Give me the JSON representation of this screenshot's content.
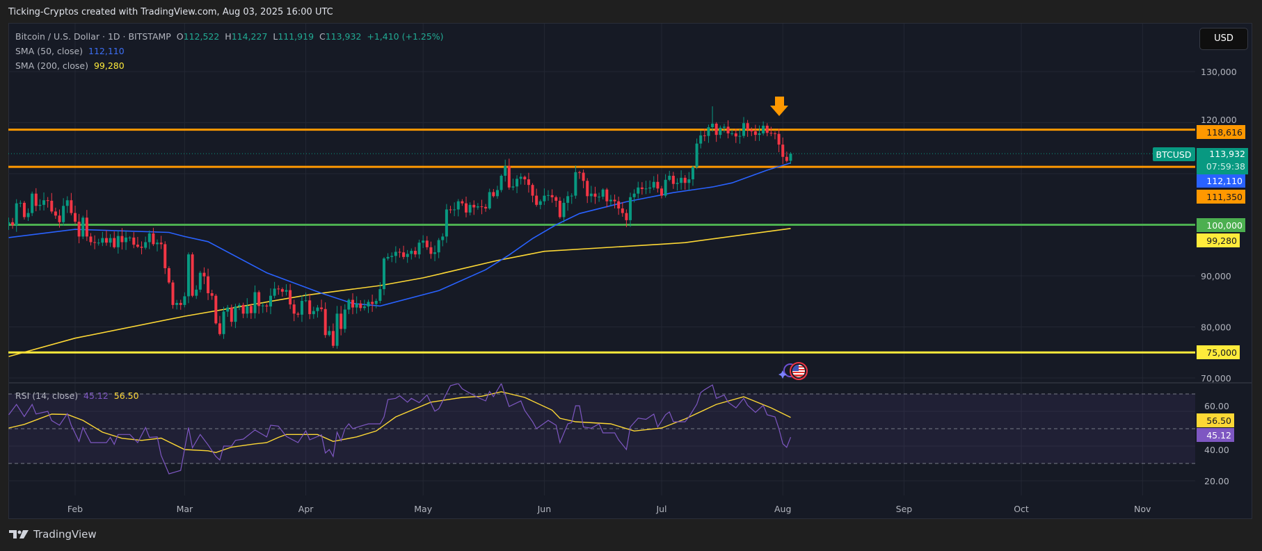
{
  "header": {
    "title": "Ticking-Cryptos created with TradingView.com, Aug 03, 2025 16:00 UTC"
  },
  "legend": {
    "symbol": "Bitcoin / U.S. Dollar · 1D · BITSTAMP",
    "open_label": "O",
    "open": "112,522",
    "high_label": "H",
    "high": "114,227",
    "low_label": "L",
    "low": "111,919",
    "close_label": "C",
    "close": "113,932",
    "change": "+1,410 (+1.25%)",
    "sma50_label": "SMA (50, close)",
    "sma50_value": "112,110",
    "sma200_label": "SMA (200, close)",
    "sma200_value": "99,280"
  },
  "currency_button": "USD",
  "footer": {
    "brand": "TradingView"
  },
  "colors": {
    "up": "#089981",
    "down": "#f23645",
    "sma50": "#2962ff",
    "sma200": "#fdd835",
    "resistance": "#ff9800",
    "support_green": "#4caf50",
    "support_yellow": "#ffeb3b",
    "rsi": "#7e57c2",
    "rsi_ma": "#fdd835",
    "background": "#161a25"
  },
  "icons": {
    "arrow": "arrow-down-icon",
    "event": "us-flag-economic-event-icon",
    "sparkle": "sparkle-icon"
  },
  "chart_data": {
    "type": "candlestick",
    "symbol": "BTCUSD",
    "interval": "1D",
    "ylim": [
      67000,
      134000
    ],
    "grid": true,
    "x_tick_labels": [
      "Feb",
      "Mar",
      "Apr",
      "May",
      "Jun",
      "Jul",
      "Aug",
      "Sep",
      "Oct",
      "Nov"
    ],
    "y_ticks": [
      {
        "value": 130000,
        "label": "130,000"
      },
      {
        "value": 120000,
        "label": "120,000"
      },
      {
        "value": 90000,
        "label": "90,000"
      },
      {
        "value": 80000,
        "label": "80,000"
      },
      {
        "value": 70000,
        "label": "70,000"
      }
    ],
    "price": {
      "first_date": "2025-01-15",
      "closes": [
        100500,
        99900,
        104200,
        104300,
        101500,
        102300,
        106100,
        103700,
        103900,
        104800,
        104700,
        102600,
        101800,
        100500,
        103700,
        104800,
        102300,
        100600,
        97700,
        101400,
        97700,
        96600,
        96500,
        96500,
        97400,
        96500,
        97400,
        95600,
        97800,
        96600,
        97500,
        97500,
        96100,
        95700,
        95500,
        96600,
        98300,
        96200,
        96500,
        96200,
        91500,
        88700,
        84300,
        84700,
        84300,
        86000,
        94200,
        86100,
        87300,
        90600,
        89900,
        86600,
        86100,
        80700,
        78600,
        83000,
        83800,
        81000,
        84000,
        84300,
        82600,
        84100,
        82700,
        86800,
        84100,
        84200,
        84000,
        86100,
        87500,
        87400,
        86900,
        87200,
        84400,
        82600,
        82400,
        85100,
        85200,
        82500,
        83100,
        83800,
        83500,
        78400,
        79200,
        76300,
        82600,
        79600,
        83400,
        85300,
        83800,
        84600,
        83700,
        84000,
        84900,
        84500,
        85100,
        87400,
        93400,
        93700,
        93900,
        94700,
        94600,
        93700,
        94300,
        94900,
        94200,
        96500,
        96900,
        95600,
        94300,
        94600,
        97000,
        97700,
        103000,
        102900,
        103000,
        104600,
        104200,
        102400,
        103900,
        103400,
        103600,
        103500,
        103200,
        106400,
        105600,
        106800,
        109600,
        111500,
        107300,
        107500,
        109000,
        109400,
        108900,
        107800,
        105700,
        103900,
        104600,
        105700,
        105800,
        105400,
        104700,
        101500,
        104300,
        105600,
        105700,
        110300,
        110200,
        108600,
        105600,
        106100,
        105500,
        105500,
        106900,
        104600,
        104900,
        104600,
        103200,
        102300,
        100900,
        105400,
        106100,
        107300,
        107000,
        107100,
        107300,
        108400,
        107100,
        105700,
        108800,
        109600,
        108000,
        108200,
        109200,
        108200,
        108900,
        111300,
        115900,
        117500,
        117400,
        119100,
        119800,
        117600,
        119000,
        119200,
        117900,
        117900,
        117300,
        117400,
        119900,
        118600,
        118300,
        117600,
        117900,
        119400,
        118000,
        117900,
        117800,
        115700,
        113300,
        112500,
        113932
      ],
      "last_candle": {
        "open": 112522,
        "high": 114227,
        "low": 111919,
        "close": 113932
      },
      "notable_high": {
        "date": "2025-07-14",
        "value": 123200
      }
    },
    "sma50": [
      [
        "2025-01-15",
        97500
      ],
      [
        "2025-02-01",
        99100
      ],
      [
        "2025-02-25",
        98500
      ],
      [
        "2025-03-01",
        97700
      ],
      [
        "2025-03-07",
        96700
      ],
      [
        "2025-03-22",
        90600
      ],
      [
        "2025-04-05",
        86600
      ],
      [
        "2025-04-13",
        84600
      ],
      [
        "2025-04-20",
        84100
      ],
      [
        "2025-05-05",
        87100
      ],
      [
        "2025-05-17",
        91200
      ],
      [
        "2025-05-23",
        94100
      ],
      [
        "2025-05-29",
        97300
      ],
      [
        "2025-06-04",
        100000
      ],
      [
        "2025-06-10",
        102200
      ],
      [
        "2025-06-22",
        104500
      ],
      [
        "2025-07-04",
        106300
      ],
      [
        "2025-07-14",
        107400
      ],
      [
        "2025-07-19",
        108200
      ],
      [
        "2025-07-28",
        110700
      ],
      [
        "2025-08-03",
        112110
      ]
    ],
    "sma200": [
      [
        "2025-01-15",
        74200
      ],
      [
        "2025-02-01",
        77800
      ],
      [
        "2025-03-01",
        82100
      ],
      [
        "2025-04-01",
        86200
      ],
      [
        "2025-04-20",
        88100
      ],
      [
        "2025-05-01",
        89600
      ],
      [
        "2025-05-20",
        93000
      ],
      [
        "2025-06-01",
        94800
      ],
      [
        "2025-07-01",
        96200
      ],
      [
        "2025-07-07",
        96500
      ],
      [
        "2025-08-03",
        99280
      ]
    ],
    "horizontal_lines": [
      {
        "name": "resistance-118616",
        "value": 118616,
        "color": "#ff9800"
      },
      {
        "name": "support-111350",
        "value": 111350,
        "color": "#ff9800"
      },
      {
        "name": "support-100000",
        "value": 100000,
        "color": "#4caf50"
      },
      {
        "name": "support-75000",
        "value": 75000,
        "color": "#ffeb3b"
      }
    ],
    "price_labels": [
      {
        "name": "label-118616",
        "text": "118,616",
        "bg": "#ff9800",
        "fg": "#131722"
      },
      {
        "name": "label-sma50",
        "text": "112,110",
        "bg": "#2962ff",
        "fg": "#ffffff"
      },
      {
        "name": "label-111350",
        "text": "111,350",
        "bg": "#ff9800",
        "fg": "#131722"
      },
      {
        "name": "label-100000",
        "text": "100,000",
        "bg": "#4caf50",
        "fg": "#ffffff"
      },
      {
        "name": "label-sma200",
        "text": "99,280",
        "bg": "#ffeb3b",
        "fg": "#131722"
      },
      {
        "name": "label-75000",
        "text": "75,000",
        "bg": "#ffeb3b",
        "fg": "#131722"
      }
    ],
    "last_price": {
      "ticker": "BTCUSD",
      "price": "113,932",
      "value": 113932,
      "countdown": "07:59:38",
      "color": "#089981"
    },
    "rsi": {
      "label": "RSI (14, close)",
      "value": "45.12",
      "ma_value": "56.50",
      "ylim": [
        10,
        80
      ],
      "bands": [
        30,
        50,
        70
      ],
      "y_ticks": [
        {
          "value": 60,
          "label": "60.00"
        },
        {
          "value": 40,
          "label": "40.00"
        },
        {
          "value": 20,
          "label": "20.00"
        }
      ],
      "series": [
        [
          "2025-01-15",
          58
        ],
        [
          "2025-01-17",
          64
        ],
        [
          "2025-01-19",
          57
        ],
        [
          "2025-01-21",
          64
        ],
        [
          "2025-01-22",
          58.5
        ],
        [
          "2025-01-25",
          60
        ],
        [
          "2025-01-26",
          54.7
        ],
        [
          "2025-01-28",
          52
        ],
        [
          "2025-01-30",
          58.7
        ],
        [
          "2025-01-31",
          52
        ],
        [
          "2025-02-02",
          42.7
        ],
        [
          "2025-02-03",
          50.7
        ],
        [
          "2025-02-05",
          42
        ],
        [
          "2025-02-09",
          42
        ],
        [
          "2025-02-10",
          45
        ],
        [
          "2025-02-11",
          41
        ],
        [
          "2025-02-12",
          46.7
        ],
        [
          "2025-02-15",
          46.7
        ],
        [
          "2025-02-17",
          42
        ],
        [
          "2025-02-19",
          50.7
        ],
        [
          "2025-02-20",
          45
        ],
        [
          "2025-02-22",
          45.3
        ],
        [
          "2025-02-23",
          34.7
        ],
        [
          "2025-02-25",
          24
        ],
        [
          "2025-02-28",
          26
        ],
        [
          "2025-03-02",
          50.7
        ],
        [
          "2025-03-03",
          39
        ],
        [
          "2025-03-05",
          46.7
        ],
        [
          "2025-03-07",
          40.7
        ],
        [
          "2025-03-09",
          34
        ],
        [
          "2025-03-10",
          32
        ],
        [
          "2025-03-11",
          40
        ],
        [
          "2025-03-13",
          40
        ],
        [
          "2025-03-14",
          43.3
        ],
        [
          "2025-03-16",
          44
        ],
        [
          "2025-03-19",
          49.3
        ],
        [
          "2025-03-22",
          45.3
        ],
        [
          "2025-03-23",
          52
        ],
        [
          "2025-03-25",
          51.5
        ],
        [
          "2025-03-27",
          45.6
        ],
        [
          "2025-03-30",
          42
        ],
        [
          "2025-04-01",
          48.8
        ],
        [
          "2025-04-02",
          43.6
        ],
        [
          "2025-04-05",
          46.5
        ],
        [
          "2025-04-06",
          36
        ],
        [
          "2025-04-07",
          38
        ],
        [
          "2025-04-08",
          34
        ],
        [
          "2025-04-09",
          48
        ],
        [
          "2025-04-10",
          43
        ],
        [
          "2025-04-11",
          50
        ],
        [
          "2025-04-12",
          52.8
        ],
        [
          "2025-04-13",
          50
        ],
        [
          "2025-04-15",
          51.5
        ],
        [
          "2025-04-17",
          52.8
        ],
        [
          "2025-04-20",
          52.8
        ],
        [
          "2025-04-21",
          56.8
        ],
        [
          "2025-04-22",
          66.8
        ],
        [
          "2025-04-24",
          67.5
        ],
        [
          "2025-04-25",
          69
        ],
        [
          "2025-04-27",
          65.3
        ],
        [
          "2025-04-28",
          67.5
        ],
        [
          "2025-04-30",
          65
        ],
        [
          "2025-05-02",
          69.4
        ],
        [
          "2025-05-04",
          60.1
        ],
        [
          "2025-05-05",
          61.5
        ],
        [
          "2025-05-08",
          74.8
        ],
        [
          "2025-05-10",
          76
        ],
        [
          "2025-05-11",
          73
        ],
        [
          "2025-05-13",
          70.4
        ],
        [
          "2025-05-15",
          68
        ],
        [
          "2025-05-17",
          66
        ],
        [
          "2025-05-18",
          71.5
        ],
        [
          "2025-05-19",
          68.5
        ],
        [
          "2025-05-21",
          76
        ],
        [
          "2025-05-23",
          62.8
        ],
        [
          "2025-05-26",
          66
        ],
        [
          "2025-05-27",
          60.5
        ],
        [
          "2025-05-29",
          54.1
        ],
        [
          "2025-05-30",
          50
        ],
        [
          "2025-06-02",
          54.8
        ],
        [
          "2025-06-04",
          52
        ],
        [
          "2025-06-05",
          42
        ],
        [
          "2025-06-07",
          52.8
        ],
        [
          "2025-06-08",
          53.5
        ],
        [
          "2025-06-09",
          63.2
        ],
        [
          "2025-06-10",
          63.2
        ],
        [
          "2025-06-11",
          51
        ],
        [
          "2025-06-13",
          50.3
        ],
        [
          "2025-06-15",
          52.8
        ],
        [
          "2025-06-16",
          47.6
        ],
        [
          "2025-06-19",
          47.6
        ],
        [
          "2025-06-20",
          43.6
        ],
        [
          "2025-06-22",
          38
        ],
        [
          "2025-06-23",
          51
        ],
        [
          "2025-06-25",
          56.1
        ],
        [
          "2025-06-27",
          55.4
        ],
        [
          "2025-06-29",
          58.4
        ],
        [
          "2025-06-30",
          51
        ],
        [
          "2025-07-02",
          58
        ],
        [
          "2025-07-03",
          59.7
        ],
        [
          "2025-07-04",
          54
        ],
        [
          "2025-07-07",
          54
        ],
        [
          "2025-07-08",
          56.8
        ],
        [
          "2025-07-10",
          64.1
        ],
        [
          "2025-07-11",
          70.8
        ],
        [
          "2025-07-12",
          72.5
        ],
        [
          "2025-07-14",
          75.2
        ],
        [
          "2025-07-15",
          67.5
        ],
        [
          "2025-07-17",
          69.4
        ],
        [
          "2025-07-18",
          65.3
        ],
        [
          "2025-07-20",
          62
        ],
        [
          "2025-07-22",
          67.5
        ],
        [
          "2025-07-23",
          63.5
        ],
        [
          "2025-07-25",
          59.4
        ],
        [
          "2025-07-27",
          63.5
        ],
        [
          "2025-07-28",
          58
        ],
        [
          "2025-07-30",
          56.8
        ],
        [
          "2025-07-31",
          50
        ],
        [
          "2025-08-01",
          41.4
        ],
        [
          "2025-08-02",
          39.3
        ],
        [
          "2025-08-03",
          45.12
        ]
      ],
      "ma_series": [
        [
          "2025-01-15",
          50.4
        ],
        [
          "2025-01-19",
          52.5
        ],
        [
          "2025-01-26",
          58.4
        ],
        [
          "2025-01-30",
          58.2
        ],
        [
          "2025-02-03",
          54.8
        ],
        [
          "2025-02-08",
          48
        ],
        [
          "2025-02-13",
          44.5
        ],
        [
          "2025-02-18",
          43.3
        ],
        [
          "2025-02-23",
          44.6
        ],
        [
          "2025-03-01",
          38
        ],
        [
          "2025-03-07",
          37.3
        ],
        [
          "2025-03-09",
          36.3
        ],
        [
          "2025-03-13",
          39.4
        ],
        [
          "2025-03-19",
          41.3
        ],
        [
          "2025-03-22",
          42
        ],
        [
          "2025-03-25",
          45
        ],
        [
          "2025-03-27",
          46.7
        ],
        [
          "2025-04-04",
          46.7
        ],
        [
          "2025-04-08",
          42.7
        ],
        [
          "2025-04-14",
          45.3
        ],
        [
          "2025-04-19",
          48.7
        ],
        [
          "2025-04-24",
          56.8
        ],
        [
          "2025-05-03",
          65.3
        ],
        [
          "2025-05-11",
          68
        ],
        [
          "2025-05-16",
          68.7
        ],
        [
          "2025-05-21",
          71.3
        ],
        [
          "2025-05-27",
          68
        ],
        [
          "2025-06-03",
          60.7
        ],
        [
          "2025-06-05",
          56
        ],
        [
          "2025-06-09",
          54
        ],
        [
          "2025-06-18",
          52.8
        ],
        [
          "2025-06-24",
          48.7
        ],
        [
          "2025-07-01",
          50.4
        ],
        [
          "2025-07-07",
          55.6
        ],
        [
          "2025-07-15",
          64
        ],
        [
          "2025-07-22",
          68.4
        ],
        [
          "2025-07-29",
          62
        ],
        [
          "2025-08-03",
          56.5
        ]
      ],
      "value_labels": [
        {
          "name": "label-rsi-ma",
          "text": "56.50",
          "bg": "#fdd835",
          "fg": "#131722"
        },
        {
          "name": "label-rsi",
          "text": "45.12",
          "bg": "#7e57c2",
          "fg": "#ffffff"
        }
      ]
    }
  }
}
